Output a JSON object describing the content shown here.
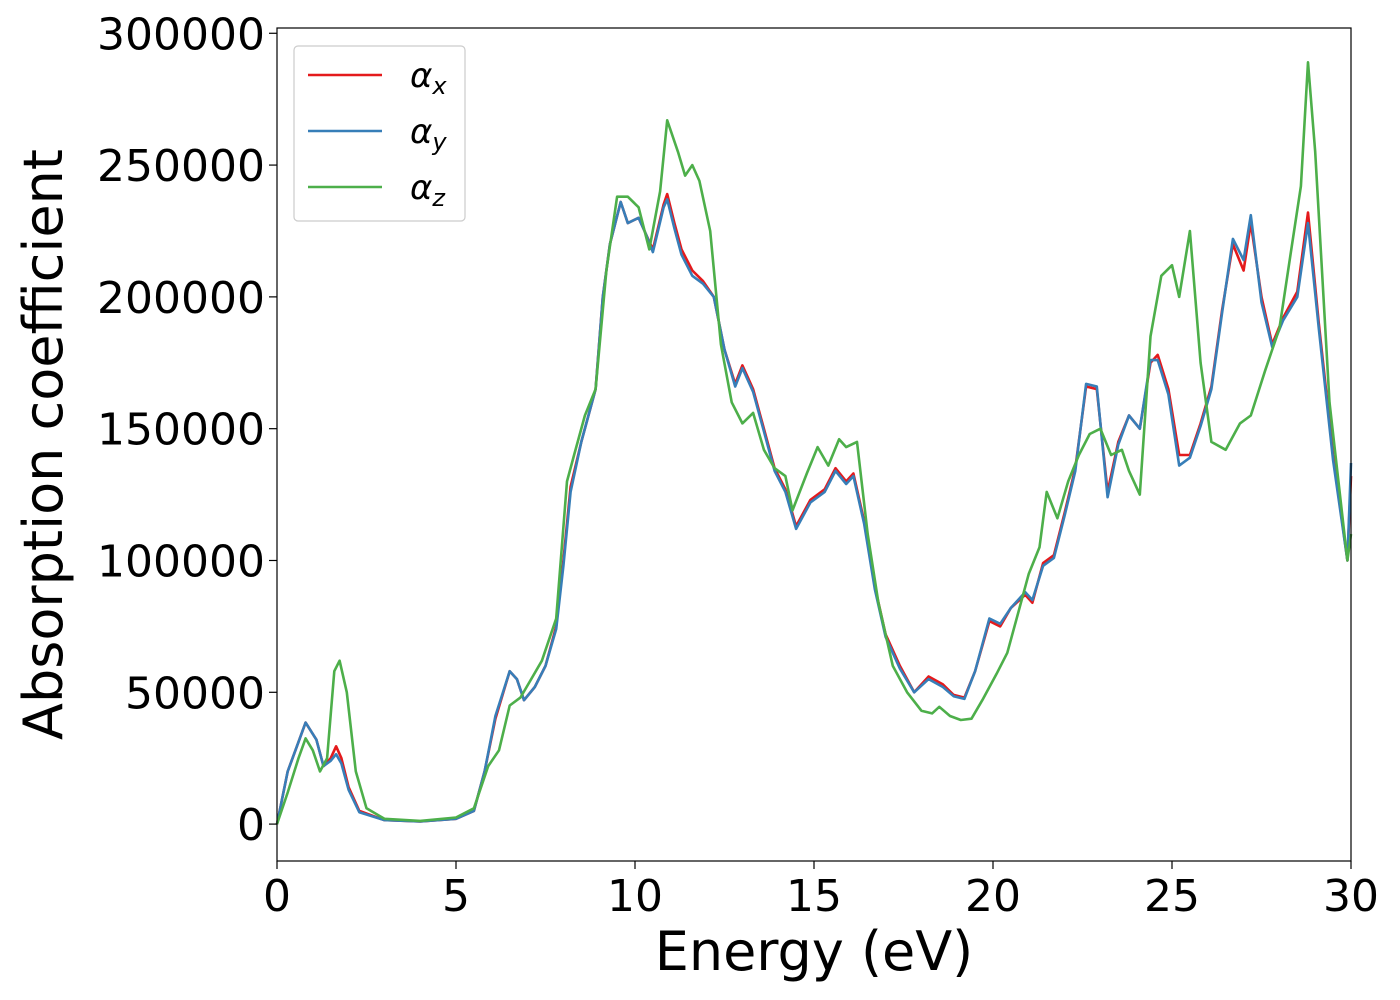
{
  "chart_data": {
    "type": "line",
    "title": "",
    "xlabel": "Energy (eV)",
    "ylabel": "Absorption coefficient",
    "xlim": [
      0,
      30
    ],
    "ylim": [
      -14000,
      302000
    ],
    "xticks": [
      0,
      5,
      10,
      15,
      20,
      25,
      30
    ],
    "xtick_labels": [
      "0",
      "5",
      "10",
      "15",
      "20",
      "25",
      "30"
    ],
    "yticks": [
      0,
      50000,
      100000,
      150000,
      200000,
      250000,
      300000
    ],
    "ytick_labels": [
      "0",
      "50000",
      "100000",
      "150000",
      "200000",
      "250000",
      "300000"
    ],
    "grid": false,
    "legend_position": "top-left",
    "series": [
      {
        "name": "αx",
        "color": "#e41a1c",
        "points": [
          [
            0,
            0
          ],
          [
            0.3,
            20000
          ],
          [
            0.8,
            38500
          ],
          [
            1.1,
            32000
          ],
          [
            1.3,
            22000
          ],
          [
            1.5,
            25000
          ],
          [
            1.65,
            29500
          ],
          [
            1.8,
            25000
          ],
          [
            2.0,
            14000
          ],
          [
            2.3,
            5000
          ],
          [
            3,
            1500
          ],
          [
            4,
            1000
          ],
          [
            5,
            2000
          ],
          [
            5.5,
            5000
          ],
          [
            5.8,
            20000
          ],
          [
            6.1,
            40000
          ],
          [
            6.5,
            58000
          ],
          [
            6.7,
            55000
          ],
          [
            6.9,
            47000
          ],
          [
            7.2,
            52000
          ],
          [
            7.5,
            60000
          ],
          [
            7.8,
            75000
          ],
          [
            8.0,
            100000
          ],
          [
            8.2,
            128000
          ],
          [
            8.5,
            145000
          ],
          [
            8.9,
            165000
          ],
          [
            9.1,
            200000
          ],
          [
            9.3,
            220000
          ],
          [
            9.6,
            236000
          ],
          [
            9.8,
            228000
          ],
          [
            10.1,
            230000
          ],
          [
            10.3,
            224000
          ],
          [
            10.5,
            218000
          ],
          [
            10.8,
            235000
          ],
          [
            10.9,
            239000
          ],
          [
            11.1,
            228000
          ],
          [
            11.3,
            218000
          ],
          [
            11.6,
            210000
          ],
          [
            11.9,
            206000
          ],
          [
            12.2,
            200000
          ],
          [
            12.5,
            180000
          ],
          [
            12.8,
            167000
          ],
          [
            13.0,
            174000
          ],
          [
            13.3,
            165000
          ],
          [
            13.6,
            150000
          ],
          [
            13.9,
            135000
          ],
          [
            14.2,
            127000
          ],
          [
            14.5,
            113000
          ],
          [
            14.9,
            123000
          ],
          [
            15.3,
            127000
          ],
          [
            15.6,
            135000
          ],
          [
            15.9,
            130000
          ],
          [
            16.1,
            133000
          ],
          [
            16.4,
            115000
          ],
          [
            16.7,
            90000
          ],
          [
            17.0,
            72000
          ],
          [
            17.4,
            60000
          ],
          [
            17.8,
            50000
          ],
          [
            18.2,
            56000
          ],
          [
            18.6,
            53000
          ],
          [
            18.9,
            49000
          ],
          [
            19.2,
            48000
          ],
          [
            19.5,
            58000
          ],
          [
            19.9,
            77000
          ],
          [
            20.2,
            75000
          ],
          [
            20.5,
            82000
          ],
          [
            20.9,
            87000
          ],
          [
            21.1,
            84000
          ],
          [
            21.4,
            99000
          ],
          [
            21.7,
            102000
          ],
          [
            22.0,
            118000
          ],
          [
            22.3,
            135000
          ],
          [
            22.6,
            166000
          ],
          [
            22.9,
            165000
          ],
          [
            23.2,
            126000
          ],
          [
            23.5,
            145000
          ],
          [
            23.8,
            155000
          ],
          [
            24.1,
            150000
          ],
          [
            24.4,
            175000
          ],
          [
            24.6,
            178000
          ],
          [
            24.9,
            165000
          ],
          [
            25.2,
            140000
          ],
          [
            25.5,
            140000
          ],
          [
            25.8,
            152000
          ],
          [
            26.1,
            166000
          ],
          [
            26.4,
            195000
          ],
          [
            26.7,
            220000
          ],
          [
            27.0,
            210000
          ],
          [
            27.2,
            228000
          ],
          [
            27.5,
            200000
          ],
          [
            27.8,
            182000
          ],
          [
            28.1,
            192000
          ],
          [
            28.5,
            202000
          ],
          [
            28.8,
            232000
          ],
          [
            29.1,
            190000
          ],
          [
            29.5,
            140000
          ],
          [
            29.9,
            100000
          ],
          [
            30,
            132000
          ]
        ]
      },
      {
        "name": "αy",
        "color": "#377eb8",
        "points": [
          [
            0,
            0
          ],
          [
            0.3,
            20000
          ],
          [
            0.8,
            38500
          ],
          [
            1.1,
            32000
          ],
          [
            1.3,
            22000
          ],
          [
            1.5,
            24000
          ],
          [
            1.65,
            26500
          ],
          [
            1.8,
            23000
          ],
          [
            2.0,
            13000
          ],
          [
            2.3,
            4500
          ],
          [
            3,
            1500
          ],
          [
            4,
            1000
          ],
          [
            5,
            2000
          ],
          [
            5.5,
            5000
          ],
          [
            5.8,
            20000
          ],
          [
            6.1,
            41000
          ],
          [
            6.5,
            58000
          ],
          [
            6.7,
            55000
          ],
          [
            6.9,
            47000
          ],
          [
            7.2,
            52000
          ],
          [
            7.5,
            60000
          ],
          [
            7.8,
            74000
          ],
          [
            8.0,
            98000
          ],
          [
            8.2,
            126000
          ],
          [
            8.5,
            145000
          ],
          [
            8.9,
            165000
          ],
          [
            9.1,
            200000
          ],
          [
            9.3,
            220000
          ],
          [
            9.6,
            236000
          ],
          [
            9.8,
            228000
          ],
          [
            10.1,
            230000
          ],
          [
            10.3,
            224000
          ],
          [
            10.5,
            217000
          ],
          [
            10.8,
            234000
          ],
          [
            10.9,
            237000
          ],
          [
            11.1,
            226000
          ],
          [
            11.3,
            216000
          ],
          [
            11.6,
            208000
          ],
          [
            11.9,
            205000
          ],
          [
            12.2,
            200000
          ],
          [
            12.5,
            180000
          ],
          [
            12.8,
            166000
          ],
          [
            13.0,
            173000
          ],
          [
            13.3,
            164000
          ],
          [
            13.6,
            149000
          ],
          [
            13.9,
            134000
          ],
          [
            14.2,
            126000
          ],
          [
            14.5,
            112000
          ],
          [
            14.9,
            122000
          ],
          [
            15.3,
            126000
          ],
          [
            15.6,
            134000
          ],
          [
            15.9,
            129000
          ],
          [
            16.1,
            132000
          ],
          [
            16.4,
            114000
          ],
          [
            16.7,
            89000
          ],
          [
            17.0,
            71000
          ],
          [
            17.4,
            59000
          ],
          [
            17.8,
            50000
          ],
          [
            18.2,
            55000
          ],
          [
            18.6,
            52000
          ],
          [
            18.9,
            48500
          ],
          [
            19.2,
            47500
          ],
          [
            19.5,
            58000
          ],
          [
            19.9,
            78000
          ],
          [
            20.2,
            76000
          ],
          [
            20.5,
            82000
          ],
          [
            20.9,
            88000
          ],
          [
            21.1,
            85000
          ],
          [
            21.4,
            98000
          ],
          [
            21.7,
            101000
          ],
          [
            22.0,
            117000
          ],
          [
            22.3,
            134000
          ],
          [
            22.6,
            167000
          ],
          [
            22.9,
            166000
          ],
          [
            23.2,
            124000
          ],
          [
            23.5,
            144000
          ],
          [
            23.8,
            155000
          ],
          [
            24.1,
            150000
          ],
          [
            24.4,
            176000
          ],
          [
            24.6,
            176000
          ],
          [
            24.9,
            163000
          ],
          [
            25.2,
            136000
          ],
          [
            25.5,
            139000
          ],
          [
            25.8,
            151000
          ],
          [
            26.1,
            165000
          ],
          [
            26.4,
            194000
          ],
          [
            26.7,
            222000
          ],
          [
            27.0,
            214000
          ],
          [
            27.2,
            231000
          ],
          [
            27.5,
            198000
          ],
          [
            27.8,
            181000
          ],
          [
            28.1,
            191000
          ],
          [
            28.5,
            200000
          ],
          [
            28.8,
            228000
          ],
          [
            29.1,
            188000
          ],
          [
            29.5,
            138000
          ],
          [
            29.9,
            100000
          ],
          [
            30,
            137000
          ]
        ]
      },
      {
        "name": "αz",
        "color": "#4daf4a",
        "points": [
          [
            0,
            0
          ],
          [
            0.3,
            12000
          ],
          [
            0.6,
            25000
          ],
          [
            0.8,
            32500
          ],
          [
            1.0,
            28000
          ],
          [
            1.2,
            20000
          ],
          [
            1.4,
            25000
          ],
          [
            1.6,
            58000
          ],
          [
            1.75,
            62000
          ],
          [
            1.95,
            50000
          ],
          [
            2.2,
            20000
          ],
          [
            2.5,
            6000
          ],
          [
            3,
            2000
          ],
          [
            4,
            1200
          ],
          [
            5,
            2500
          ],
          [
            5.5,
            6000
          ],
          [
            5.9,
            22000
          ],
          [
            6.2,
            28000
          ],
          [
            6.5,
            45000
          ],
          [
            6.8,
            48000
          ],
          [
            7.1,
            55000
          ],
          [
            7.4,
            62000
          ],
          [
            7.8,
            78000
          ],
          [
            8.1,
            130000
          ],
          [
            8.3,
            140000
          ],
          [
            8.6,
            155000
          ],
          [
            8.9,
            165000
          ],
          [
            9.2,
            210000
          ],
          [
            9.5,
            238000
          ],
          [
            9.8,
            238000
          ],
          [
            10.1,
            234000
          ],
          [
            10.4,
            218000
          ],
          [
            10.7,
            240000
          ],
          [
            10.9,
            267000
          ],
          [
            11.2,
            255000
          ],
          [
            11.4,
            246000
          ],
          [
            11.6,
            250000
          ],
          [
            11.8,
            244000
          ],
          [
            12.1,
            225000
          ],
          [
            12.4,
            182000
          ],
          [
            12.7,
            160000
          ],
          [
            13.0,
            152000
          ],
          [
            13.3,
            156000
          ],
          [
            13.6,
            142000
          ],
          [
            13.9,
            135000
          ],
          [
            14.2,
            132000
          ],
          [
            14.4,
            119000
          ],
          [
            14.8,
            133000
          ],
          [
            15.1,
            143000
          ],
          [
            15.4,
            136000
          ],
          [
            15.7,
            146000
          ],
          [
            15.9,
            143000
          ],
          [
            16.2,
            145000
          ],
          [
            16.5,
            110000
          ],
          [
            16.8,
            84000
          ],
          [
            17.2,
            60000
          ],
          [
            17.6,
            50000
          ],
          [
            18.0,
            43000
          ],
          [
            18.3,
            42000
          ],
          [
            18.5,
            44500
          ],
          [
            18.8,
            41000
          ],
          [
            19.1,
            39500
          ],
          [
            19.4,
            40000
          ],
          [
            19.7,
            47000
          ],
          [
            20.1,
            57000
          ],
          [
            20.4,
            65000
          ],
          [
            20.7,
            80000
          ],
          [
            21.0,
            95000
          ],
          [
            21.3,
            105000
          ],
          [
            21.5,
            126000
          ],
          [
            21.8,
            116000
          ],
          [
            22.1,
            130000
          ],
          [
            22.4,
            140000
          ],
          [
            22.7,
            148000
          ],
          [
            23.0,
            150000
          ],
          [
            23.3,
            140000
          ],
          [
            23.6,
            142000
          ],
          [
            23.8,
            134000
          ],
          [
            24.1,
            125000
          ],
          [
            24.4,
            185000
          ],
          [
            24.7,
            208000
          ],
          [
            25.0,
            212000
          ],
          [
            25.2,
            200000
          ],
          [
            25.5,
            225000
          ],
          [
            25.8,
            175000
          ],
          [
            26.1,
            145000
          ],
          [
            26.5,
            142000
          ],
          [
            26.9,
            152000
          ],
          [
            27.2,
            155000
          ],
          [
            27.6,
            172000
          ],
          [
            28.0,
            188000
          ],
          [
            28.3,
            215000
          ],
          [
            28.6,
            242000
          ],
          [
            28.8,
            289000
          ],
          [
            29.0,
            255000
          ],
          [
            29.4,
            160000
          ],
          [
            29.9,
            100000
          ],
          [
            30,
            110000
          ]
        ]
      }
    ]
  }
}
